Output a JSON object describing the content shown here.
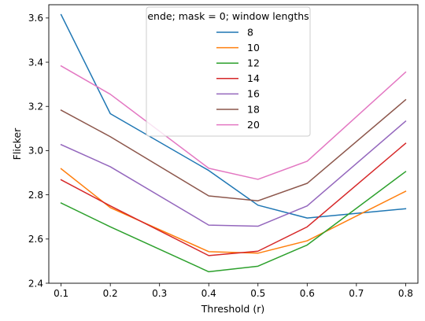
{
  "chart_data": {
    "type": "line",
    "title": "",
    "xlabel": "Threshold (r)",
    "ylabel": "Flicker",
    "x": [
      0.1,
      0.2,
      0.4,
      0.5,
      0.6,
      0.8
    ],
    "xlim": [
      0.075,
      0.825
    ],
    "ylim": [
      2.4,
      3.66
    ],
    "xticks": [
      0.1,
      0.2,
      0.3,
      0.4,
      0.5,
      0.6,
      0.7,
      0.8
    ],
    "xtick_labels": [
      "0.1",
      "0.2",
      "0.3",
      "0.4",
      "0.5",
      "0.6",
      "0.7",
      "0.8"
    ],
    "yticks": [
      2.4,
      2.6,
      2.8,
      3.0,
      3.2,
      3.4,
      3.6
    ],
    "ytick_labels": [
      "2.4",
      "2.6",
      "2.8",
      "3.0",
      "3.2",
      "3.4",
      "3.6"
    ],
    "grid": false,
    "legend": {
      "title": "ende; mask = 0; window lengths",
      "placement": "top-center"
    },
    "series": [
      {
        "name": "8",
        "color": "#1f77b4",
        "values": [
          3.615,
          3.167,
          2.91,
          2.753,
          2.695,
          2.737
        ]
      },
      {
        "name": "10",
        "color": "#ff7f0e",
        "values": [
          2.918,
          2.742,
          2.543,
          2.536,
          2.592,
          2.816
        ]
      },
      {
        "name": "12",
        "color": "#2ca02c",
        "values": [
          2.763,
          2.655,
          2.452,
          2.477,
          2.573,
          2.905
        ]
      },
      {
        "name": "14",
        "color": "#d62728",
        "values": [
          2.868,
          2.75,
          2.525,
          2.545,
          2.655,
          3.033
        ]
      },
      {
        "name": "16",
        "color": "#9467bd",
        "values": [
          3.027,
          2.927,
          2.663,
          2.658,
          2.75,
          3.133
        ]
      },
      {
        "name": "18",
        "color": "#8c564b",
        "values": [
          3.183,
          3.063,
          2.795,
          2.773,
          2.852,
          3.23
        ]
      },
      {
        "name": "20",
        "color": "#e377c2",
        "values": [
          3.383,
          3.255,
          2.92,
          2.87,
          2.952,
          3.355
        ]
      }
    ]
  }
}
